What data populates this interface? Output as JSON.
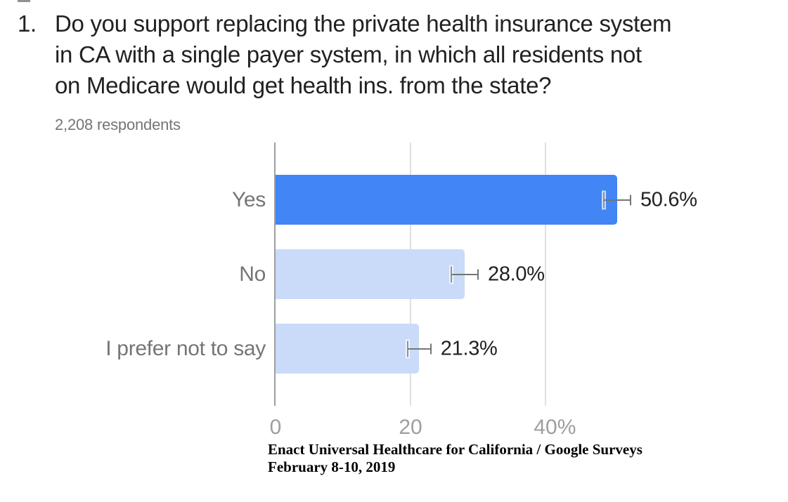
{
  "question": {
    "number_label": "1.",
    "lines": [
      "Do you support replacing the private health insurance system",
      "in CA with a single payer system, in which all residents not",
      "on Medicare would get health ins. from the state?"
    ],
    "respondents": "2,208 respondents"
  },
  "chart_data": {
    "type": "bar",
    "orientation": "horizontal",
    "title": "Do you support replacing the private health insurance system in CA with a single payer system, in which all residents not on Medicare would get health ins. from the state?",
    "subtitle": "2,208 respondents",
    "categories": [
      "Yes",
      "No",
      "I prefer not to say"
    ],
    "values": [
      50.6,
      28.0,
      21.3
    ],
    "rows": [
      {
        "label": "Yes",
        "value": 50.6,
        "display": "50.6%",
        "error": 2.0,
        "color": "#4285f4"
      },
      {
        "label": "No",
        "value": 28.0,
        "display": "28.0%",
        "error": 2.0,
        "color": "#c9dbf8"
      },
      {
        "label": "I prefer not to say",
        "value": 21.3,
        "display": "21.3%",
        "error": 1.7,
        "color": "#c9dbf8"
      }
    ],
    "axis": {
      "min": 0,
      "max": 62.5,
      "ticks": [
        {
          "value": 0,
          "label": "0",
          "suffix": ""
        },
        {
          "value": 20,
          "label": "20",
          "suffix": ""
        },
        {
          "value": 40,
          "label": "40",
          "suffix": "%"
        }
      ]
    },
    "grid": true,
    "legend": false,
    "error_bars": true,
    "xlabel": "",
    "ylabel": ""
  },
  "attribution": {
    "line1": "Enact Universal Healthcare for California / Google Surveys",
    "line2": "February 8-10, 2019"
  },
  "colors": {
    "bar_primary": "#4285f4",
    "bar_secondary": "#c9dbf8",
    "title_text": "#212121",
    "label_text": "#757575",
    "tick_text": "#9e9e9e",
    "value_text": "#212121",
    "error_bar": "#757575",
    "axis_line": "#9e9e9e",
    "gridline": "#e0e0e0",
    "background": "#ffffff"
  }
}
